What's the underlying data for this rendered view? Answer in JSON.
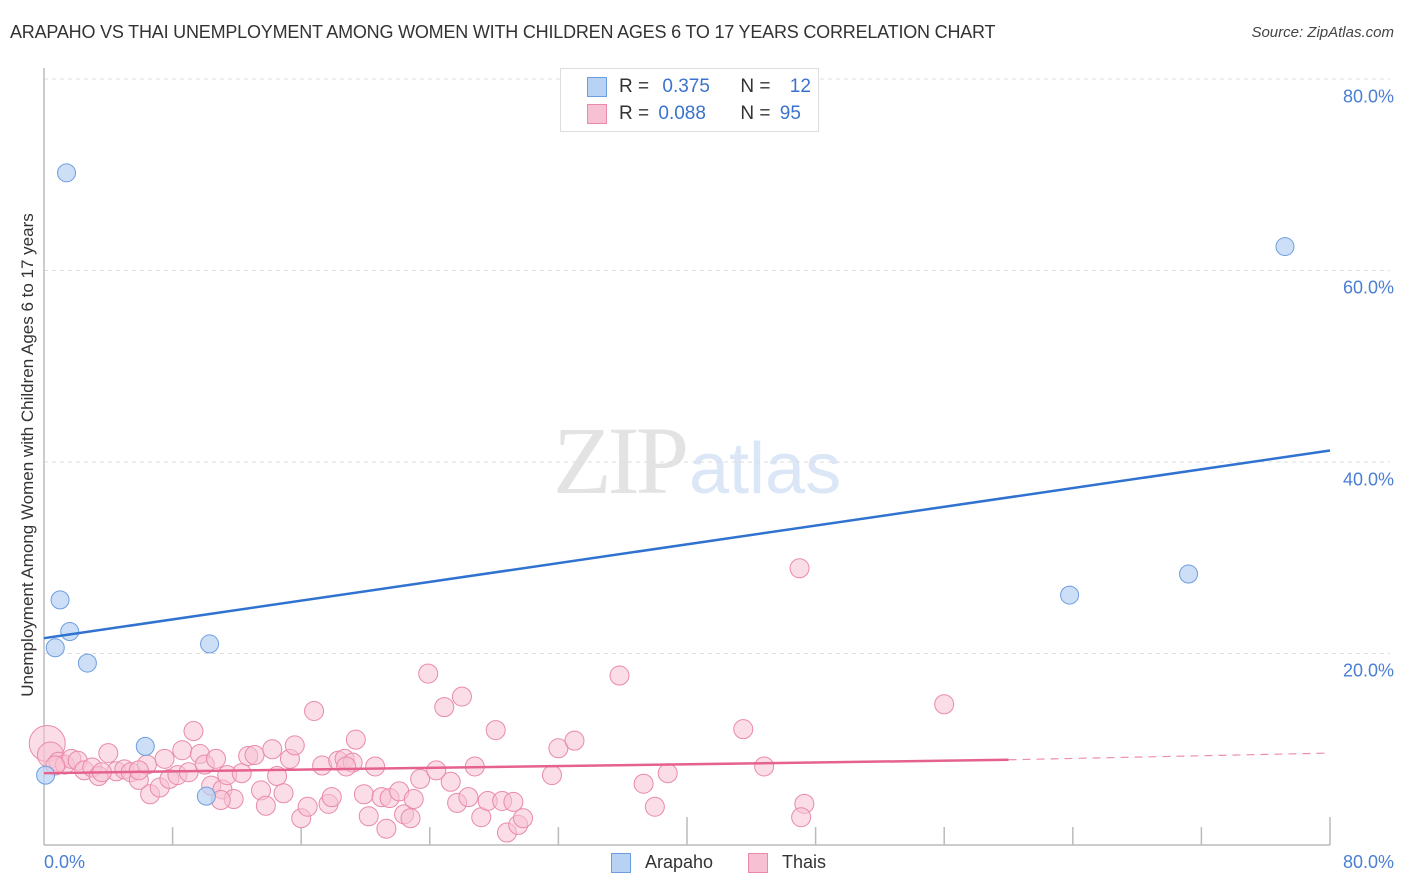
{
  "header": {
    "title": "ARAPAHO VS THAI UNEMPLOYMENT AMONG WOMEN WITH CHILDREN AGES 6 TO 17 YEARS CORRELATION CHART",
    "source": "Source: ZipAtlas.com"
  },
  "legend": {
    "rows": [
      {
        "series": "Arapaho",
        "r_label": "R =",
        "r_value": "0.375",
        "n_label": "N =",
        "n_value": "12"
      },
      {
        "series": "Thais",
        "r_label": "R =",
        "r_value": "0.088",
        "n_label": "N =",
        "n_value": "95"
      }
    ],
    "bottom": [
      {
        "label": "Arapaho"
      },
      {
        "label": "Thais"
      }
    ]
  },
  "watermark": {
    "zip": "ZIP",
    "atlas": "atlas"
  },
  "axes": {
    "ylabel": "Unemployment Among Women with Children Ages 6 to 17 years",
    "y_ticks": [
      "80.0%",
      "60.0%",
      "40.0%",
      "20.0%"
    ],
    "x_min_label": "0.0%",
    "x_max_label": "80.0%"
  },
  "colors": {
    "arapaho_fill": "#b8d2f4",
    "arapaho_stroke": "#6c9de0",
    "arapaho_line": "#2f72d0",
    "thais_fill": "#f8c1d3",
    "thais_stroke": "#e98aaa",
    "thais_line": "#e5628e",
    "tick_label": "#4a7fd4",
    "grid": "#dddddd"
  },
  "chart_data": {
    "type": "scatter",
    "title": "ARAPAHO VS THAI UNEMPLOYMENT AMONG WOMEN WITH CHILDREN AGES 6 TO 17 YEARS CORRELATION CHART",
    "xlabel": "",
    "ylabel": "Unemployment Among Women with Children Ages 6 to 17 years",
    "xlim": [
      0,
      80
    ],
    "ylim": [
      0,
      80
    ],
    "x_ticks": [
      0,
      8,
      16,
      24,
      32,
      40,
      48,
      56,
      64,
      72,
      80
    ],
    "y_ticks": [
      20,
      40,
      60,
      80
    ],
    "grid": "horizontal dashed",
    "legend_position": "top-center and bottom",
    "series": [
      {
        "name": "Arapaho",
        "R": 0.375,
        "N": 12,
        "trend": {
          "x": [
            0,
            80
          ],
          "y": [
            21.6,
            41.2
          ]
        },
        "points": [
          [
            1.4,
            70.2
          ],
          [
            1.0,
            25.6
          ],
          [
            1.6,
            22.3
          ],
          [
            0.7,
            20.6
          ],
          [
            2.7,
            19.0
          ],
          [
            10.3,
            21.0
          ],
          [
            6.3,
            10.3
          ],
          [
            10.1,
            5.1
          ],
          [
            0.1,
            7.3
          ],
          [
            77.2,
            62.5
          ],
          [
            63.8,
            26.1
          ],
          [
            71.2,
            28.3
          ]
        ]
      },
      {
        "name": "Thais",
        "R": 0.088,
        "N": 95,
        "trend": {
          "x": [
            0,
            60,
            80
          ],
          "y": [
            7.5,
            8.9,
            9.6
          ],
          "dashed_after_x": 60
        },
        "points": [
          [
            0.2,
            10.6
          ],
          [
            0.4,
            9.4
          ],
          [
            0.9,
            8.7
          ],
          [
            1.3,
            8.4
          ],
          [
            1.7,
            9.0
          ],
          [
            2.1,
            8.8
          ],
          [
            2.5,
            7.8
          ],
          [
            3.0,
            8.1
          ],
          [
            3.4,
            7.2
          ],
          [
            4.0,
            9.6
          ],
          [
            4.5,
            7.7
          ],
          [
            5.0,
            7.9
          ],
          [
            5.4,
            7.6
          ],
          [
            5.9,
            6.8
          ],
          [
            6.4,
            8.4
          ],
          [
            6.6,
            5.3
          ],
          [
            7.2,
            6.0
          ],
          [
            7.5,
            9.0
          ],
          [
            7.8,
            6.9
          ],
          [
            8.3,
            7.3
          ],
          [
            8.6,
            9.9
          ],
          [
            9.0,
            7.6
          ],
          [
            9.3,
            11.9
          ],
          [
            9.7,
            9.5
          ],
          [
            10.0,
            8.4
          ],
          [
            10.4,
            6.2
          ],
          [
            10.7,
            9.0
          ],
          [
            11.1,
            5.8
          ],
          [
            11.4,
            7.3
          ],
          [
            11.8,
            4.8
          ],
          [
            12.3,
            7.5
          ],
          [
            12.7,
            9.3
          ],
          [
            13.1,
            9.4
          ],
          [
            13.5,
            5.7
          ],
          [
            13.8,
            4.1
          ],
          [
            14.2,
            10.0
          ],
          [
            14.5,
            7.2
          ],
          [
            14.9,
            5.4
          ],
          [
            15.3,
            9.0
          ],
          [
            15.6,
            10.4
          ],
          [
            16.0,
            2.8
          ],
          [
            16.4,
            4.0
          ],
          [
            16.8,
            14.0
          ],
          [
            17.3,
            8.3
          ],
          [
            17.7,
            4.3
          ],
          [
            17.9,
            5.0
          ],
          [
            18.3,
            8.8
          ],
          [
            18.7,
            9.0
          ],
          [
            19.2,
            8.6
          ],
          [
            19.4,
            11.0
          ],
          [
            19.9,
            5.3
          ],
          [
            20.2,
            3.0
          ],
          [
            20.6,
            8.2
          ],
          [
            21.0,
            5.0
          ],
          [
            21.3,
            1.7
          ],
          [
            21.5,
            4.9
          ],
          [
            22.1,
            5.6
          ],
          [
            22.4,
            3.2
          ],
          [
            22.8,
            2.8
          ],
          [
            23.0,
            4.8
          ],
          [
            23.4,
            6.9
          ],
          [
            23.9,
            17.9
          ],
          [
            24.4,
            7.8
          ],
          [
            24.9,
            14.4
          ],
          [
            25.7,
            4.4
          ],
          [
            26.0,
            15.5
          ],
          [
            26.4,
            5.0
          ],
          [
            26.8,
            8.2
          ],
          [
            27.2,
            2.9
          ],
          [
            27.6,
            4.6
          ],
          [
            28.1,
            12.0
          ],
          [
            28.5,
            4.6
          ],
          [
            28.8,
            1.3
          ],
          [
            29.2,
            4.5
          ],
          [
            29.5,
            2.1
          ],
          [
            29.8,
            2.8
          ],
          [
            31.6,
            7.3
          ],
          [
            32.0,
            10.1
          ],
          [
            33.0,
            10.9
          ],
          [
            35.8,
            17.7
          ],
          [
            37.3,
            6.4
          ],
          [
            38.0,
            4.0
          ],
          [
            38.8,
            7.5
          ],
          [
            43.5,
            12.1
          ],
          [
            44.8,
            8.2
          ],
          [
            47.0,
            28.9
          ],
          [
            47.3,
            4.3
          ],
          [
            47.1,
            2.9
          ],
          [
            56.0,
            14.7
          ],
          [
            3.6,
            7.6
          ],
          [
            5.9,
            7.8
          ],
          [
            11.0,
            4.7
          ],
          [
            18.8,
            8.2
          ],
          [
            25.3,
            6.6
          ],
          [
            0.7,
            8.3
          ]
        ]
      }
    ]
  }
}
